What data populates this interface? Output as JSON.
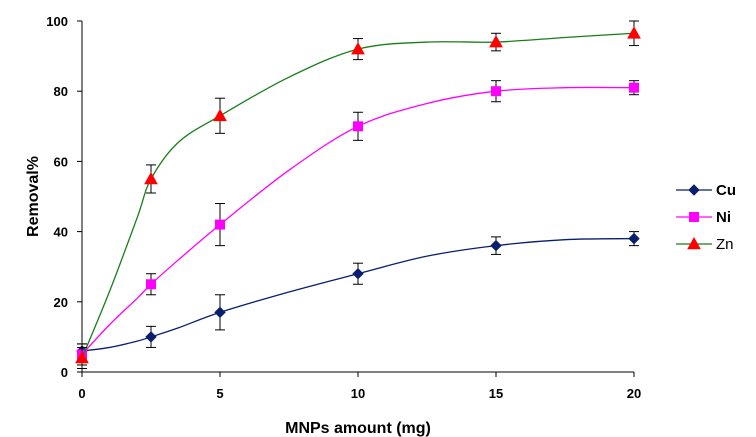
{
  "chart_data": {
    "type": "line",
    "xlabel": "MNPs amount (mg)",
    "ylabel": "Removal%",
    "xlim": [
      0,
      20
    ],
    "ylim": [
      0,
      100
    ],
    "xticks": [
      "0",
      "5",
      "10",
      "15",
      "20"
    ],
    "yticks": [
      "0",
      "20",
      "40",
      "60",
      "80",
      "100"
    ],
    "grid": false,
    "legend_position": "right",
    "series": [
      {
        "name": "Cu",
        "color": "#0a1e6e",
        "marker": "diamond",
        "label_bold": true,
        "x": [
          0,
          2.5,
          5,
          10,
          15,
          20
        ],
        "y": [
          6,
          10,
          17,
          28,
          36,
          38
        ],
        "err": [
          2,
          3,
          5,
          3,
          2.5,
          2
        ],
        "curve": [
          [
            0,
            6
          ],
          [
            1,
            7
          ],
          [
            2,
            8.8
          ],
          [
            2.5,
            10
          ],
          [
            3.5,
            12.6
          ],
          [
            5,
            17
          ],
          [
            7.5,
            22.8
          ],
          [
            10,
            28
          ],
          [
            12.5,
            33
          ],
          [
            15,
            36
          ],
          [
            17.5,
            37.7
          ],
          [
            20,
            38
          ]
        ]
      },
      {
        "name": "Ni",
        "color": "#ff00ff",
        "marker": "square",
        "label_bold": true,
        "x": [
          0,
          2.5,
          5,
          10,
          15,
          20
        ],
        "y": [
          5,
          25,
          42,
          70,
          80,
          81
        ],
        "err": [
          3,
          3,
          6,
          4,
          3,
          2
        ],
        "curve": [
          [
            0,
            5
          ],
          [
            1,
            13.5
          ],
          [
            2,
            21
          ],
          [
            2.5,
            25
          ],
          [
            3.5,
            32
          ],
          [
            5,
            42
          ],
          [
            7.5,
            57.5
          ],
          [
            10,
            70
          ],
          [
            12.5,
            76.5
          ],
          [
            15,
            80
          ],
          [
            17.5,
            81
          ],
          [
            20,
            81
          ]
        ]
      },
      {
        "name": "Zn",
        "color": "#1a7d1a",
        "marker": "triangle",
        "label_bold": false,
        "x": [
          0,
          2.5,
          5,
          10,
          15,
          20
        ],
        "y": [
          4,
          55,
          73,
          92,
          94,
          96.5
        ],
        "err": [
          3,
          4,
          5,
          3,
          2.5,
          3.5
        ],
        "curve": [
          [
            0,
            4
          ],
          [
            1,
            23
          ],
          [
            2,
            44
          ],
          [
            2.5,
            55
          ],
          [
            3.5,
            65.5
          ],
          [
            5,
            73
          ],
          [
            7.5,
            84
          ],
          [
            10,
            92
          ],
          [
            12.5,
            94
          ],
          [
            15,
            94
          ],
          [
            17.5,
            95.3
          ],
          [
            20,
            96.5
          ]
        ]
      }
    ]
  }
}
